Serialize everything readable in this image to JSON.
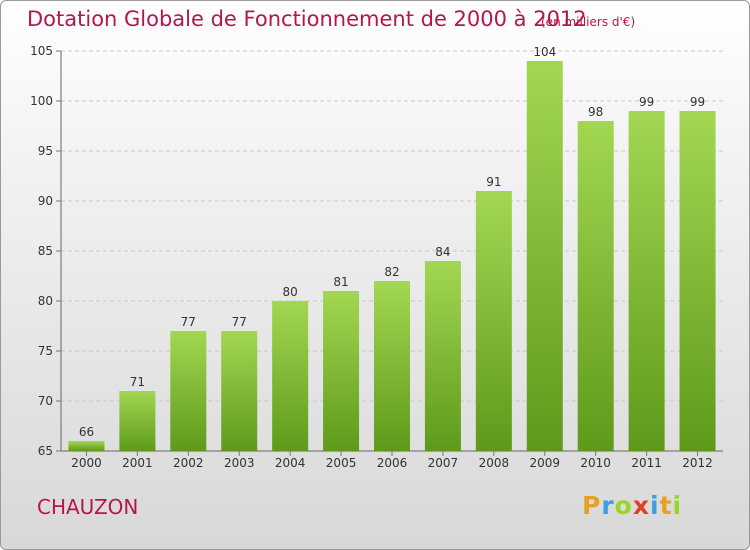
{
  "header": {
    "title": "Dotation Globale de Fonctionnement de 2000 à 2012",
    "subtitle": "(en milliers d'€)"
  },
  "footer": {
    "commune": "CHAUZON",
    "logo_text": "Proxiti",
    "logo_colors": [
      "#e8a020",
      "#3aa0e0",
      "#9bd42a",
      "#e0402a",
      "#3aa0e0",
      "#e8a020",
      "#9bd42a"
    ]
  },
  "chart_data": {
    "type": "bar",
    "categories": [
      "2000",
      "2001",
      "2002",
      "2003",
      "2004",
      "2005",
      "2006",
      "2007",
      "2008",
      "2009",
      "2010",
      "2011",
      "2012"
    ],
    "values": [
      66,
      71,
      77,
      77,
      80,
      81,
      82,
      84,
      91,
      104,
      98,
      99,
      99
    ],
    "ylim": [
      65,
      105
    ],
    "yticks": [
      65,
      70,
      75,
      80,
      85,
      90,
      95,
      100,
      105
    ],
    "grid": true,
    "bar_color_light": "#a3d752",
    "bar_color_dark": "#5e9a1a"
  }
}
